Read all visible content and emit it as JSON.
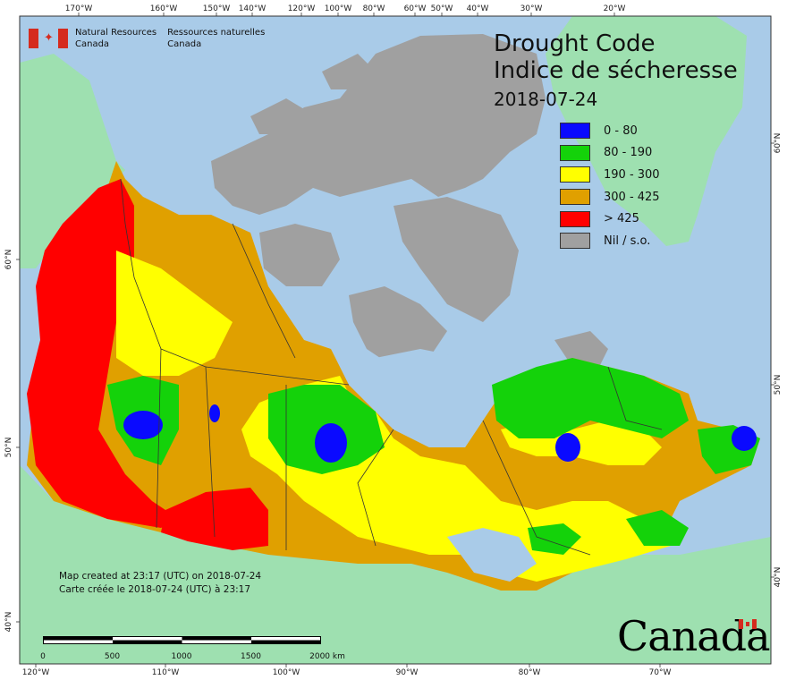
{
  "map": {
    "title_en": "Drought Code",
    "title_fr": "Indice de sécheresse",
    "date": "2018-07-24",
    "legend": [
      {
        "label": "0 - 80",
        "color": "#0a0aff"
      },
      {
        "label": "80 - 190",
        "color": "#14d20a"
      },
      {
        "label": "190 - 300",
        "color": "#ffff00"
      },
      {
        "label": "300 - 425",
        "color": "#e0a000"
      },
      {
        "label": "> 425",
        "color": "#ff0000"
      },
      {
        "label": "Nil / s.o.",
        "color": "#a0a0a0"
      }
    ],
    "agency": {
      "en_line1": "Natural Resources",
      "en_line2": "Canada",
      "fr_line1": "Ressources naturelles",
      "fr_line2": "Canada"
    },
    "credit_en": "Map created at 23:17 (UTC) on 2018-07-24",
    "credit_fr": "Carte créée le 2018-07-24 (UTC) à 23:17",
    "wordmark": "Canada",
    "scale_labels": [
      "0",
      "500",
      "1000",
      "1500",
      "2000  km"
    ],
    "top_ticks": [
      "170°W",
      "160°W",
      "150°W",
      "140°W",
      "120°W",
      "100°W",
      "80°W",
      "60°W",
      "50°W",
      "40°W",
      "30°W",
      "20°W"
    ],
    "bottom_ticks": [
      "120°W",
      "110°W",
      "100°W",
      "90°W",
      "80°W",
      "70°W"
    ],
    "left_ticks": [
      "60°N",
      "50°N",
      "40°N"
    ],
    "right_ticks": [
      "60°N",
      "50°N",
      "40°N"
    ],
    "colors": {
      "ocean": "#a9cbe8",
      "foreign_land": "#9ee0b0",
      "nil": "#a0a0a0"
    }
  }
}
